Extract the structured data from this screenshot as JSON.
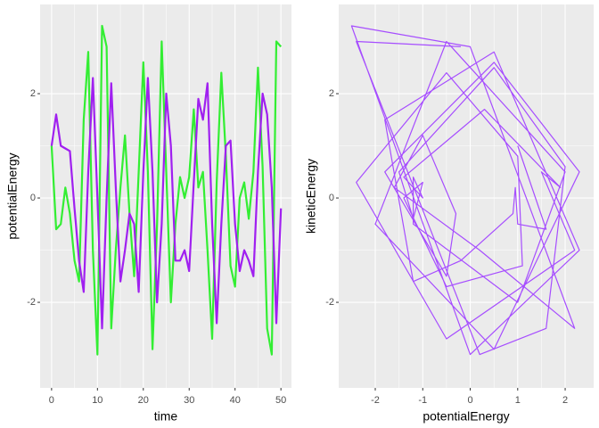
{
  "chart_data": [
    {
      "type": "line",
      "xlabel": "time",
      "ylabel": "potentialEnergy",
      "grid": true,
      "x": [
        0,
        1,
        2,
        3,
        4,
        5,
        6,
        7,
        8,
        9,
        10,
        11,
        12,
        13,
        14,
        15,
        16,
        17,
        18,
        19,
        20,
        21,
        22,
        23,
        24,
        25,
        26,
        27,
        28,
        29,
        30,
        31,
        32,
        33,
        34,
        35,
        36,
        37,
        38,
        39,
        40,
        41,
        42,
        43,
        44,
        45,
        46,
        47,
        48,
        49,
        50
      ],
      "series": [
        {
          "color": "#33ee33",
          "values": [
            1.0,
            -0.6,
            -0.5,
            0.2,
            -0.3,
            -1.2,
            -1.6,
            1.5,
            2.8,
            -1.0,
            -3.0,
            3.3,
            2.9,
            -2.5,
            -1.0,
            0.2,
            1.2,
            -0.3,
            -1.5,
            0.5,
            2.6,
            0.5,
            -2.9,
            -0.5,
            3.0,
            0.5,
            -2.0,
            -0.5,
            0.4,
            0.0,
            0.4,
            1.7,
            0.2,
            0.5,
            -1.0,
            -2.7,
            0.3,
            2.4,
            0.8,
            -1.3,
            -1.7,
            0.0,
            0.3,
            -0.4,
            0.5,
            2.5,
            0.6,
            -2.5,
            -3.0,
            3.0,
            2.9
          ]
        },
        {
          "color": "#a020f0",
          "values": [
            1.0,
            1.6,
            1.0,
            0.95,
            0.9,
            -0.2,
            -1.2,
            -1.8,
            0.5,
            2.3,
            0.0,
            -2.5,
            0.0,
            2.2,
            0.2,
            -1.6,
            -1.0,
            -0.3,
            -0.5,
            -1.8,
            0.5,
            2.3,
            0.5,
            -2.0,
            -0.5,
            2.0,
            1.0,
            -1.2,
            -1.2,
            -1.0,
            -1.4,
            0.3,
            1.9,
            1.5,
            2.2,
            -0.5,
            -2.4,
            -0.5,
            1.0,
            1.1,
            -0.5,
            -1.4,
            -1.0,
            -1.2,
            -1.5,
            0.5,
            2.0,
            1.6,
            0.2,
            -2.4,
            -0.2
          ]
        }
      ],
      "xlim": [
        -2.5,
        52.3
      ],
      "xticks": [
        0,
        10,
        20,
        30,
        40,
        50
      ],
      "ylim": [
        -3.64,
        3.71
      ],
      "yticks": [
        -2,
        0,
        2
      ]
    },
    {
      "type": "path",
      "xlabel": "potentialEnergy",
      "ylabel": "kineticEnergy",
      "grid": true,
      "x": [
        1.0,
        1.6,
        1.0,
        0.95,
        0.9,
        -0.2,
        -1.2,
        -1.8,
        0.5,
        2.3,
        0.0,
        -2.5,
        0.0,
        2.2,
        0.2,
        -1.6,
        -1.0,
        -0.3,
        -0.5,
        -1.8,
        0.5,
        2.3,
        0.5,
        -2.0,
        -0.5,
        2.0,
        1.0,
        -1.2,
        -1.2,
        -1.0,
        -1.4,
        0.3,
        1.9,
        1.5,
        2.2,
        -0.5,
        -2.4,
        -0.5,
        1.0,
        1.1,
        -0.5,
        -1.4,
        -1.0,
        -1.2,
        -1.5,
        0.5,
        2.0,
        1.6,
        0.2,
        -2.4,
        -0.2
      ],
      "series": [
        {
          "color": "#a64dff",
          "values": [
            1.0,
            -0.6,
            -0.5,
            0.2,
            -0.3,
            -1.2,
            -1.6,
            1.5,
            2.8,
            -1.0,
            -3.0,
            3.3,
            2.9,
            -2.5,
            -1.0,
            0.2,
            1.2,
            -0.3,
            -1.5,
            0.5,
            2.6,
            0.5,
            -2.9,
            -0.5,
            3.0,
            0.5,
            -2.0,
            -0.5,
            0.4,
            0.0,
            0.4,
            1.7,
            0.2,
            0.5,
            -1.0,
            -2.7,
            0.3,
            2.4,
            0.8,
            -1.3,
            -1.7,
            0.0,
            0.3,
            -0.4,
            0.5,
            2.5,
            0.6,
            -2.5,
            -3.0,
            3.0,
            2.9
          ]
        }
      ],
      "xlim": [
        -2.77,
        2.6
      ],
      "xticks": [
        -2,
        -1,
        0,
        1,
        2
      ],
      "ylim": [
        -3.64,
        3.71
      ],
      "yticks": [
        -2,
        0,
        2
      ]
    }
  ]
}
